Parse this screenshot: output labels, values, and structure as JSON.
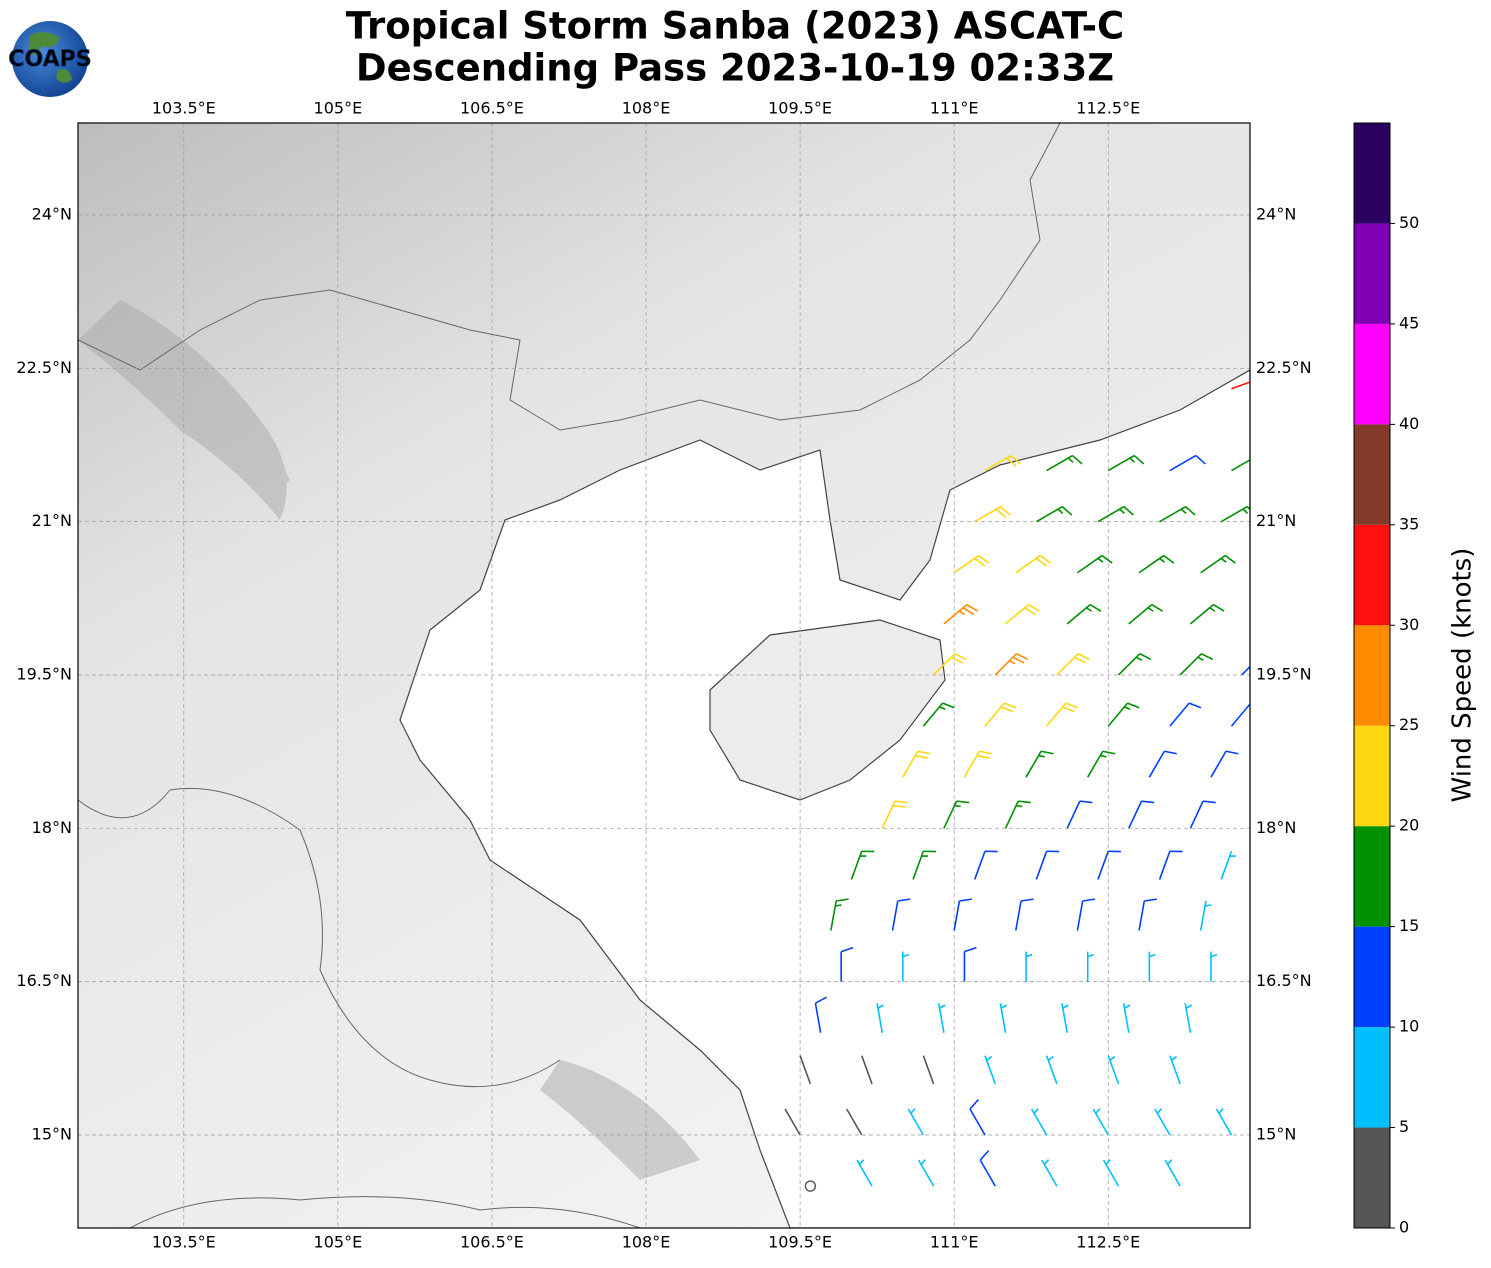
{
  "map": {
    "title": [
      "Tropical Storm Sanba (2023) ASCAT-C",
      "Descending Pass 2023-10-19 02:33Z"
    ],
    "logo": "COAPS",
    "xlim": [
      102.47,
      113.88
    ],
    "ylim": [
      14.09,
      24.9
    ],
    "lon_ticks": [
      {
        "value": 103.5,
        "label": "103.5°E"
      },
      {
        "value": 105,
        "label": "105°E"
      },
      {
        "value": 106.5,
        "label": "106.5°E"
      },
      {
        "value": 108,
        "label": "108°E"
      },
      {
        "value": 109.5,
        "label": "109.5°E"
      },
      {
        "value": 111,
        "label": "111°E"
      },
      {
        "value": 112.5,
        "label": "112.5°E"
      }
    ],
    "lat_ticks": [
      {
        "value": 15,
        "label": "15°N"
      },
      {
        "value": 16.5,
        "label": "16.5°N"
      },
      {
        "value": 18,
        "label": "18°N"
      },
      {
        "value": 19.5,
        "label": "19.5°N"
      },
      {
        "value": 21,
        "label": "21°N"
      },
      {
        "value": 22.5,
        "label": "22.5°N"
      },
      {
        "value": 24,
        "label": "24°N"
      }
    ],
    "grid": true,
    "colorbar": {
      "label": "Wind Speed (knots)",
      "bounds": [
        0,
        5,
        10,
        15,
        20,
        25,
        30,
        35,
        40,
        45,
        50,
        55
      ],
      "colors": [
        "#555555",
        "#00bfff",
        "#0040ff",
        "#009000",
        "#ffd710",
        "#ff8c00",
        "#ff1010",
        "#823a2a",
        "#ff00ff",
        "#8000b4",
        "#2a0060"
      ],
      "ticks": [
        0,
        5,
        10,
        15,
        20,
        25,
        30,
        35,
        40,
        45,
        50
      ]
    },
    "barbs": [
      {
        "lon": 111.3,
        "lat": 21.5,
        "speed": 22,
        "direction": 60
      },
      {
        "lon": 111.9,
        "lat": 21.5,
        "speed": 18,
        "direction": 60
      },
      {
        "lon": 112.5,
        "lat": 21.5,
        "speed": 17,
        "direction": 60
      },
      {
        "lon": 113.1,
        "lat": 21.5,
        "speed": 14,
        "direction": 60
      },
      {
        "lon": 113.7,
        "lat": 21.5,
        "speed": 16,
        "direction": 60
      },
      {
        "lon": 111.2,
        "lat": 21.0,
        "speed": 21,
        "direction": 60
      },
      {
        "lon": 111.8,
        "lat": 21.0,
        "speed": 18,
        "direction": 60
      },
      {
        "lon": 112.4,
        "lat": 21.0,
        "speed": 17,
        "direction": 60
      },
      {
        "lon": 113.0,
        "lat": 21.0,
        "speed": 16,
        "direction": 60
      },
      {
        "lon": 113.6,
        "lat": 21.0,
        "speed": 17,
        "direction": 60
      },
      {
        "lon": 111.0,
        "lat": 20.5,
        "speed": 22,
        "direction": 55
      },
      {
        "lon": 111.6,
        "lat": 20.5,
        "speed": 21,
        "direction": 55
      },
      {
        "lon": 112.2,
        "lat": 20.5,
        "speed": 18,
        "direction": 55
      },
      {
        "lon": 112.8,
        "lat": 20.5,
        "speed": 17,
        "direction": 55
      },
      {
        "lon": 113.4,
        "lat": 20.5,
        "speed": 17,
        "direction": 55
      },
      {
        "lon": 110.9,
        "lat": 20.0,
        "speed": 27,
        "direction": 50
      },
      {
        "lon": 111.5,
        "lat": 20.0,
        "speed": 22,
        "direction": 50
      },
      {
        "lon": 112.1,
        "lat": 20.0,
        "speed": 19,
        "direction": 50
      },
      {
        "lon": 112.7,
        "lat": 20.0,
        "speed": 17,
        "direction": 50
      },
      {
        "lon": 113.3,
        "lat": 20.0,
        "speed": 16,
        "direction": 50
      },
      {
        "lon": 110.8,
        "lat": 19.5,
        "speed": 23,
        "direction": 45
      },
      {
        "lon": 111.4,
        "lat": 19.5,
        "speed": 26,
        "direction": 45
      },
      {
        "lon": 112.0,
        "lat": 19.5,
        "speed": 22,
        "direction": 45
      },
      {
        "lon": 112.6,
        "lat": 19.5,
        "speed": 18,
        "direction": 45
      },
      {
        "lon": 113.2,
        "lat": 19.5,
        "speed": 16,
        "direction": 45
      },
      {
        "lon": 113.8,
        "lat": 19.5,
        "speed": 14,
        "direction": 45
      },
      {
        "lon": 110.7,
        "lat": 19.0,
        "speed": 18,
        "direction": 40
      },
      {
        "lon": 111.3,
        "lat": 19.0,
        "speed": 22,
        "direction": 40
      },
      {
        "lon": 111.9,
        "lat": 19.0,
        "speed": 21,
        "direction": 40
      },
      {
        "lon": 112.5,
        "lat": 19.0,
        "speed": 17,
        "direction": 40
      },
      {
        "lon": 113.1,
        "lat": 19.0,
        "speed": 14,
        "direction": 40
      },
      {
        "lon": 113.7,
        "lat": 19.0,
        "speed": 13,
        "direction": 40
      },
      {
        "lon": 110.5,
        "lat": 18.5,
        "speed": 21,
        "direction": 30
      },
      {
        "lon": 111.1,
        "lat": 18.5,
        "speed": 22,
        "direction": 30
      },
      {
        "lon": 111.7,
        "lat": 18.5,
        "speed": 18,
        "direction": 30
      },
      {
        "lon": 112.3,
        "lat": 18.5,
        "speed": 16,
        "direction": 30
      },
      {
        "lon": 112.9,
        "lat": 18.5,
        "speed": 14,
        "direction": 30
      },
      {
        "lon": 113.5,
        "lat": 18.5,
        "speed": 13,
        "direction": 30
      },
      {
        "lon": 110.3,
        "lat": 18.0,
        "speed": 21,
        "direction": 25
      },
      {
        "lon": 110.9,
        "lat": 18.0,
        "speed": 19,
        "direction": 25
      },
      {
        "lon": 111.5,
        "lat": 18.0,
        "speed": 17,
        "direction": 25
      },
      {
        "lon": 112.1,
        "lat": 18.0,
        "speed": 14,
        "direction": 25
      },
      {
        "lon": 112.7,
        "lat": 18.0,
        "speed": 13,
        "direction": 25
      },
      {
        "lon": 113.3,
        "lat": 18.0,
        "speed": 12,
        "direction": 25
      },
      {
        "lon": 110.0,
        "lat": 17.5,
        "speed": 18,
        "direction": 20
      },
      {
        "lon": 110.6,
        "lat": 17.5,
        "speed": 17,
        "direction": 20
      },
      {
        "lon": 111.2,
        "lat": 17.5,
        "speed": 14,
        "direction": 20
      },
      {
        "lon": 111.8,
        "lat": 17.5,
        "speed": 13,
        "direction": 20
      },
      {
        "lon": 112.4,
        "lat": 17.5,
        "speed": 12,
        "direction": 20
      },
      {
        "lon": 113.0,
        "lat": 17.5,
        "speed": 11,
        "direction": 20
      },
      {
        "lon": 113.6,
        "lat": 17.5,
        "speed": 9,
        "direction": 20
      },
      {
        "lon": 109.8,
        "lat": 17.0,
        "speed": 16,
        "direction": 10
      },
      {
        "lon": 110.4,
        "lat": 17.0,
        "speed": 13,
        "direction": 10
      },
      {
        "lon": 111.0,
        "lat": 17.0,
        "speed": 12,
        "direction": 10
      },
      {
        "lon": 111.6,
        "lat": 17.0,
        "speed": 12,
        "direction": 10
      },
      {
        "lon": 112.2,
        "lat": 17.0,
        "speed": 11,
        "direction": 10
      },
      {
        "lon": 112.8,
        "lat": 17.0,
        "speed": 11,
        "direction": 10
      },
      {
        "lon": 113.4,
        "lat": 17.0,
        "speed": 9,
        "direction": 10
      },
      {
        "lon": 109.9,
        "lat": 16.5,
        "speed": 11,
        "direction": 0
      },
      {
        "lon": 110.5,
        "lat": 16.5,
        "speed": 8,
        "direction": 0
      },
      {
        "lon": 111.1,
        "lat": 16.5,
        "speed": 11,
        "direction": 0
      },
      {
        "lon": 111.7,
        "lat": 16.5,
        "speed": 9,
        "direction": 0
      },
      {
        "lon": 112.3,
        "lat": 16.5,
        "speed": 8,
        "direction": 0
      },
      {
        "lon": 112.9,
        "lat": 16.5,
        "speed": 8,
        "direction": 0
      },
      {
        "lon": 113.5,
        "lat": 16.5,
        "speed": 9,
        "direction": 0
      },
      {
        "lon": 109.7,
        "lat": 16.0,
        "speed": 11,
        "direction": 350
      },
      {
        "lon": 110.3,
        "lat": 16.0,
        "speed": 7,
        "direction": 350
      },
      {
        "lon": 110.9,
        "lat": 16.0,
        "speed": 8,
        "direction": 350
      },
      {
        "lon": 111.5,
        "lat": 16.0,
        "speed": 8,
        "direction": 350
      },
      {
        "lon": 112.1,
        "lat": 16.0,
        "speed": 7,
        "direction": 350
      },
      {
        "lon": 112.7,
        "lat": 16.0,
        "speed": 8,
        "direction": 350
      },
      {
        "lon": 113.3,
        "lat": 16.0,
        "speed": 8,
        "direction": 350
      },
      {
        "lon": 109.6,
        "lat": 15.5,
        "speed": 4,
        "direction": 340
      },
      {
        "lon": 110.2,
        "lat": 15.5,
        "speed": 3,
        "direction": 340
      },
      {
        "lon": 110.8,
        "lat": 15.5,
        "speed": 4,
        "direction": 340
      },
      {
        "lon": 111.4,
        "lat": 15.5,
        "speed": 7,
        "direction": 340
      },
      {
        "lon": 112.0,
        "lat": 15.5,
        "speed": 8,
        "direction": 340
      },
      {
        "lon": 112.6,
        "lat": 15.5,
        "speed": 7,
        "direction": 340
      },
      {
        "lon": 113.2,
        "lat": 15.5,
        "speed": 8,
        "direction": 340
      },
      {
        "lon": 109.5,
        "lat": 15.0,
        "speed": 3,
        "direction": 330
      },
      {
        "lon": 110.1,
        "lat": 15.0,
        "speed": 4,
        "direction": 330
      },
      {
        "lon": 110.7,
        "lat": 15.0,
        "speed": 6,
        "direction": 330
      },
      {
        "lon": 111.3,
        "lat": 15.0,
        "speed": 11,
        "direction": 330
      },
      {
        "lon": 111.9,
        "lat": 15.0,
        "speed": 7,
        "direction": 330
      },
      {
        "lon": 112.5,
        "lat": 15.0,
        "speed": 8,
        "direction": 330
      },
      {
        "lon": 113.1,
        "lat": 15.0,
        "speed": 7,
        "direction": 330
      },
      {
        "lon": 113.7,
        "lat": 15.0,
        "speed": 7,
        "direction": 330
      },
      {
        "lon": 109.6,
        "lat": 14.5,
        "speed": 2,
        "direction": 330
      },
      {
        "lon": 110.2,
        "lat": 14.5,
        "speed": 6,
        "direction": 330
      },
      {
        "lon": 110.8,
        "lat": 14.5,
        "speed": 7,
        "direction": 330
      },
      {
        "lon": 111.4,
        "lat": 14.5,
        "speed": 10,
        "direction": 330
      },
      {
        "lon": 112.0,
        "lat": 14.5,
        "speed": 7,
        "direction": 330
      },
      {
        "lon": 112.6,
        "lat": 14.5,
        "speed": 8,
        "direction": 330
      },
      {
        "lon": 113.2,
        "lat": 14.5,
        "speed": 7,
        "direction": 330
      },
      {
        "lon": 113.7,
        "lat": 22.3,
        "speed": 32,
        "direction": 70
      }
    ]
  }
}
